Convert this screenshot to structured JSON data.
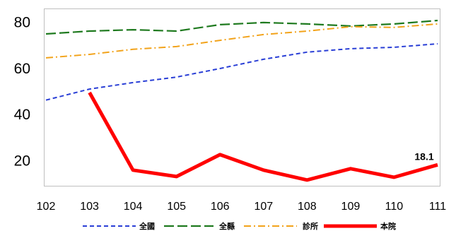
{
  "chart_data": {
    "type": "line",
    "categories": [
      "102",
      "103",
      "104",
      "105",
      "106",
      "107",
      "108",
      "109",
      "110",
      "111"
    ],
    "series": [
      {
        "name": "全國",
        "color": "#2a3fd6",
        "values": [
          46.1,
          50.9,
          53.7,
          56.1,
          59.8,
          63.8,
          66.9,
          68.4,
          69.0,
          70.5
        ]
      },
      {
        "name": "全縣",
        "color": "#1f7a1f",
        "values": [
          74.8,
          76.0,
          76.6,
          76.0,
          78.8,
          79.7,
          79.1,
          78.2,
          79.1,
          80.6
        ]
      },
      {
        "name": "診所",
        "color": "#f2a31b",
        "values": [
          64.4,
          65.9,
          68.1,
          69.3,
          72.0,
          74.5,
          76.0,
          77.9,
          77.6,
          79.1
        ]
      },
      {
        "name": "本院",
        "color": "#ff0000",
        "values": [
          null,
          49.4,
          15.8,
          13.0,
          22.5,
          15.8,
          11.5,
          16.4,
          12.7,
          18.1
        ]
      }
    ],
    "yticks": [
      20,
      40,
      60,
      80
    ],
    "ylim": [
      9,
      85.8
    ],
    "data_labels": [
      {
        "series_index": 3,
        "category_index": 9,
        "text": "18.1"
      }
    ],
    "legend": "bottom",
    "grid": false
  }
}
